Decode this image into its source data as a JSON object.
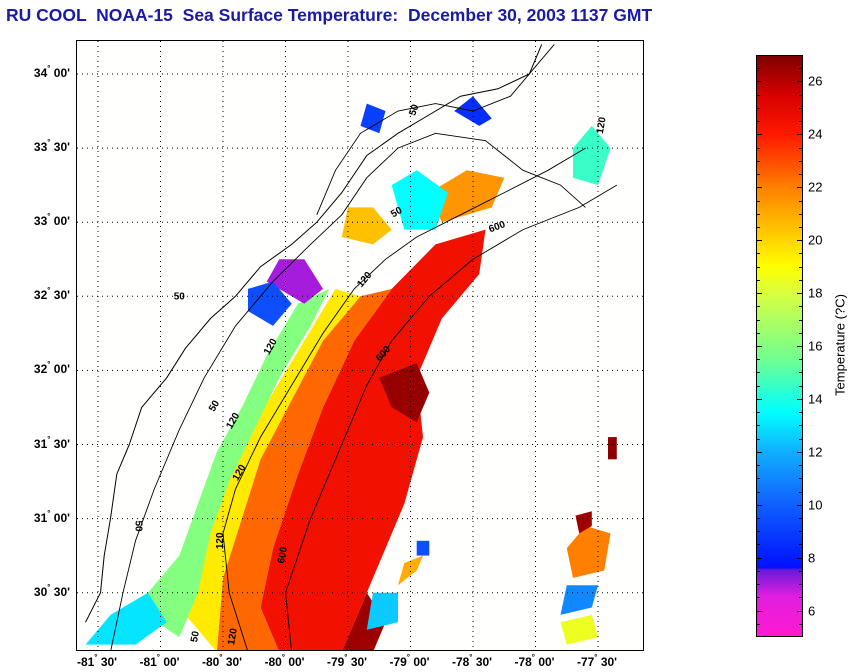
{
  "title": "RU COOL  NOAA-15  Sea Surface Temperature:  December 30, 2003 1137 GMT",
  "map": {
    "projection_extent": {
      "lon_min": -81.6,
      "lon_max": -77.35,
      "lat_min": 30.1,
      "lat_max": 34.22
    },
    "latitude_labels": [
      {
        "value": 34.0,
        "deg": "34",
        "min": "00'"
      },
      {
        "value": 33.5,
        "deg": "33",
        "min": "30'"
      },
      {
        "value": 33.0,
        "deg": "33",
        "min": "00'"
      },
      {
        "value": 32.5,
        "deg": "32",
        "min": "30'"
      },
      {
        "value": 32.0,
        "deg": "32",
        "min": "00'"
      },
      {
        "value": 31.5,
        "deg": "31",
        "min": "30'"
      },
      {
        "value": 31.0,
        "deg": "31",
        "min": "00'"
      },
      {
        "value": 30.5,
        "deg": "30",
        "min": "30'"
      }
    ],
    "longitude_labels": [
      {
        "value": -81.5,
        "deg": "-81",
        "min": "30'"
      },
      {
        "value": -81.0,
        "deg": "-81",
        "min": "00'"
      },
      {
        "value": -80.5,
        "deg": "-80",
        "min": "30'"
      },
      {
        "value": -80.0,
        "deg": "-80",
        "min": "00'"
      },
      {
        "value": -79.5,
        "deg": "-79",
        "min": "30'"
      },
      {
        "value": -79.0,
        "deg": "-79",
        "min": "00'"
      },
      {
        "value": -78.5,
        "deg": "-78",
        "min": "30'"
      },
      {
        "value": -78.0,
        "deg": "-78",
        "min": "00'"
      },
      {
        "value": -77.5,
        "deg": "-77",
        "min": "30'"
      }
    ],
    "isobath_labels": [
      "50",
      "50",
      "50",
      "50",
      "50",
      "50",
      "120",
      "120",
      "120",
      "120",
      "120",
      "120",
      "120",
      "600",
      "600",
      "600"
    ],
    "grid": "dotted"
  },
  "colorbar": {
    "label": "Temperature (?C)",
    "range": [
      5,
      27
    ],
    "ticks": [
      "6",
      "8",
      "10",
      "12",
      "14",
      "16",
      "18",
      "20",
      "22",
      "24",
      "26"
    ],
    "tick_values": [
      6,
      8,
      10,
      12,
      14,
      16,
      18,
      20,
      22,
      24,
      26
    ],
    "colors": [
      {
        "t": 5.0,
        "c": "#ff1ad0"
      },
      {
        "t": 6.5,
        "c": "#e01ee0"
      },
      {
        "t": 7.5,
        "c": "#6a1ad8"
      },
      {
        "t": 7.6,
        "c": "#0010ff"
      },
      {
        "t": 10.0,
        "c": "#1060ff"
      },
      {
        "t": 12.0,
        "c": "#10b0ff"
      },
      {
        "t": 13.5,
        "c": "#00ffff"
      },
      {
        "t": 15.5,
        "c": "#70ff90"
      },
      {
        "t": 18.0,
        "c": "#d8ff40"
      },
      {
        "t": 19.0,
        "c": "#ffff00"
      },
      {
        "t": 20.5,
        "c": "#ffc000"
      },
      {
        "t": 22.0,
        "c": "#ff8000"
      },
      {
        "t": 24.0,
        "c": "#ff1a00"
      },
      {
        "t": 25.5,
        "c": "#d80000"
      },
      {
        "t": 27.0,
        "c": "#800000"
      }
    ]
  },
  "sst_patches": [
    {
      "name": "gulf-stream-core",
      "temp": 24.5,
      "pts": [
        [
          -80.05,
          30.1
        ],
        [
          -79.55,
          30.1
        ],
        [
          -79.3,
          30.6
        ],
        [
          -79.05,
          31.1
        ],
        [
          -78.9,
          31.55
        ],
        [
          -78.95,
          31.95
        ],
        [
          -78.75,
          32.35
        ],
        [
          -78.45,
          32.65
        ],
        [
          -78.4,
          32.95
        ],
        [
          -78.8,
          32.85
        ],
        [
          -79.15,
          32.55
        ],
        [
          -79.45,
          32.2
        ],
        [
          -79.7,
          31.75
        ],
        [
          -79.9,
          31.3
        ],
        [
          -80.1,
          30.8
        ],
        [
          -80.2,
          30.4
        ]
      ]
    },
    {
      "name": "warm-eastern-edge",
      "temp": 26.5,
      "pts": [
        [
          -79.55,
          30.1
        ],
        [
          -79.3,
          30.1
        ],
        [
          -79.2,
          30.3
        ],
        [
          -79.35,
          30.5
        ]
      ]
    },
    {
      "name": "warm-patch-n",
      "temp": 26.6,
      "pts": [
        [
          -79.25,
          31.95
        ],
        [
          -78.95,
          32.05
        ],
        [
          -78.85,
          31.85
        ],
        [
          -78.95,
          31.65
        ],
        [
          -79.15,
          31.75
        ]
      ]
    },
    {
      "name": "shelf-orange",
      "temp": 22.5,
      "pts": [
        [
          -80.55,
          30.1
        ],
        [
          -80.05,
          30.1
        ],
        [
          -80.2,
          30.4
        ],
        [
          -80.1,
          30.8
        ],
        [
          -79.9,
          31.3
        ],
        [
          -79.7,
          31.75
        ],
        [
          -79.45,
          32.2
        ],
        [
          -79.15,
          32.55
        ],
        [
          -79.4,
          32.5
        ],
        [
          -79.7,
          32.2
        ],
        [
          -79.95,
          31.8
        ],
        [
          -80.2,
          31.4
        ],
        [
          -80.35,
          31.0
        ],
        [
          -80.5,
          30.6
        ]
      ]
    },
    {
      "name": "shelf-yellow",
      "temp": 19.5,
      "pts": [
        [
          -80.8,
          30.35
        ],
        [
          -80.55,
          30.1
        ],
        [
          -80.5,
          30.6
        ],
        [
          -80.35,
          31.0
        ],
        [
          -80.2,
          31.4
        ],
        [
          -79.95,
          31.8
        ],
        [
          -79.7,
          32.2
        ],
        [
          -79.4,
          32.5
        ],
        [
          -79.6,
          32.55
        ],
        [
          -79.85,
          32.2
        ],
        [
          -80.1,
          31.85
        ],
        [
          -80.35,
          31.5
        ],
        [
          -80.55,
          31.1
        ],
        [
          -80.7,
          30.75
        ]
      ]
    },
    {
      "name": "shelf-green",
      "temp": 16.0,
      "pts": [
        [
          -81.2,
          30.4
        ],
        [
          -80.85,
          30.2
        ],
        [
          -80.7,
          30.5
        ],
        [
          -80.6,
          30.9
        ],
        [
          -80.45,
          31.25
        ],
        [
          -80.25,
          31.6
        ],
        [
          -80.05,
          31.95
        ],
        [
          -79.8,
          32.3
        ],
        [
          -79.65,
          32.55
        ],
        [
          -79.9,
          32.45
        ],
        [
          -80.15,
          32.1
        ],
        [
          -80.35,
          31.75
        ],
        [
          -80.55,
          31.45
        ],
        [
          -80.7,
          31.1
        ],
        [
          -80.85,
          30.75
        ]
      ]
    },
    {
      "name": "shelf-cyan-sw",
      "temp": 13.0,
      "pts": [
        [
          -81.6,
          30.15
        ],
        [
          -81.2,
          30.15
        ],
        [
          -80.95,
          30.3
        ],
        [
          -81.1,
          30.5
        ],
        [
          -81.4,
          30.35
        ]
      ]
    },
    {
      "name": "nearshore-purple",
      "temp": 7.0,
      "pts": [
        [
          -80.15,
          32.6
        ],
        [
          -79.85,
          32.45
        ],
        [
          -79.7,
          32.55
        ],
        [
          -79.85,
          32.75
        ],
        [
          -80.05,
          32.75
        ]
      ]
    },
    {
      "name": "nearshore-blue",
      "temp": 9.5,
      "pts": [
        [
          -80.3,
          32.4
        ],
        [
          -80.1,
          32.3
        ],
        [
          -79.95,
          32.45
        ],
        [
          -80.1,
          32.6
        ],
        [
          -80.3,
          32.55
        ]
      ]
    },
    {
      "name": "shelf-north-yellow",
      "temp": 20.5,
      "pts": [
        [
          -79.55,
          32.9
        ],
        [
          -79.3,
          32.85
        ],
        [
          -79.15,
          32.95
        ],
        [
          -79.3,
          33.1
        ],
        [
          -79.5,
          33.1
        ]
      ]
    },
    {
      "name": "shelf-north-orange",
      "temp": 21.5,
      "pts": [
        [
          -78.75,
          33.0
        ],
        [
          -78.35,
          33.1
        ],
        [
          -78.25,
          33.3
        ],
        [
          -78.55,
          33.35
        ],
        [
          -78.85,
          33.2
        ]
      ]
    },
    {
      "name": "shelf-north-cyan",
      "temp": 13.5,
      "pts": [
        [
          -79.05,
          32.95
        ],
        [
          -78.8,
          32.95
        ],
        [
          -78.7,
          33.2
        ],
        [
          -78.95,
          33.35
        ],
        [
          -79.15,
          33.25
        ]
      ]
    },
    {
      "name": "north-blue-1",
      "temp": 9.0,
      "pts": [
        [
          -79.4,
          33.65
        ],
        [
          -79.25,
          33.6
        ],
        [
          -79.2,
          33.75
        ],
        [
          -79.35,
          33.8
        ]
      ]
    },
    {
      "name": "north-blue-2",
      "temp": 8.5,
      "pts": [
        [
          -78.65,
          33.75
        ],
        [
          -78.45,
          33.65
        ],
        [
          -78.35,
          33.7
        ],
        [
          -78.5,
          33.85
        ]
      ]
    },
    {
      "name": "north-cyan-3",
      "temp": 14.5,
      "pts": [
        [
          -77.7,
          33.3
        ],
        [
          -77.5,
          33.25
        ],
        [
          -77.4,
          33.5
        ],
        [
          -77.55,
          33.65
        ],
        [
          -77.7,
          33.5
        ]
      ]
    },
    {
      "name": "se-orange",
      "temp": 22.0,
      "pts": [
        [
          -77.7,
          30.6
        ],
        [
          -77.45,
          30.65
        ],
        [
          -77.4,
          30.9
        ],
        [
          -77.6,
          30.95
        ],
        [
          -77.75,
          30.8
        ]
      ]
    },
    {
      "name": "se-darkred",
      "temp": 26.5,
      "pts": [
        [
          -77.65,
          30.9
        ],
        [
          -77.55,
          30.95
        ],
        [
          -77.55,
          31.05
        ],
        [
          -77.68,
          31.02
        ]
      ]
    },
    {
      "name": "se-blue",
      "temp": 11.0,
      "pts": [
        [
          -77.8,
          30.35
        ],
        [
          -77.55,
          30.4
        ],
        [
          -77.5,
          30.55
        ],
        [
          -77.75,
          30.55
        ]
      ]
    },
    {
      "name": "se-yellow",
      "temp": 18.5,
      "pts": [
        [
          -77.75,
          30.15
        ],
        [
          -77.5,
          30.2
        ],
        [
          -77.55,
          30.35
        ],
        [
          -77.8,
          30.3
        ]
      ]
    },
    {
      "name": "far-east-darkred",
      "temp": 26.8,
      "pts": [
        [
          -77.42,
          31.4
        ],
        [
          -77.35,
          31.4
        ],
        [
          -77.35,
          31.55
        ],
        [
          -77.42,
          31.55
        ]
      ]
    },
    {
      "name": "mid-orange",
      "temp": 21.0,
      "pts": [
        [
          -79.1,
          30.55
        ],
        [
          -78.95,
          30.65
        ],
        [
          -78.9,
          30.75
        ],
        [
          -79.05,
          30.7
        ]
      ]
    },
    {
      "name": "mid-blue",
      "temp": 9.5,
      "pts": [
        [
          -78.95,
          30.75
        ],
        [
          -78.85,
          30.75
        ],
        [
          -78.85,
          30.85
        ],
        [
          -78.95,
          30.85
        ]
      ]
    },
    {
      "name": "s-cluster",
      "temp": 12.5,
      "pts": [
        [
          -79.35,
          30.25
        ],
        [
          -79.1,
          30.3
        ],
        [
          -79.1,
          30.5
        ],
        [
          -79.3,
          30.5
        ]
      ]
    }
  ]
}
